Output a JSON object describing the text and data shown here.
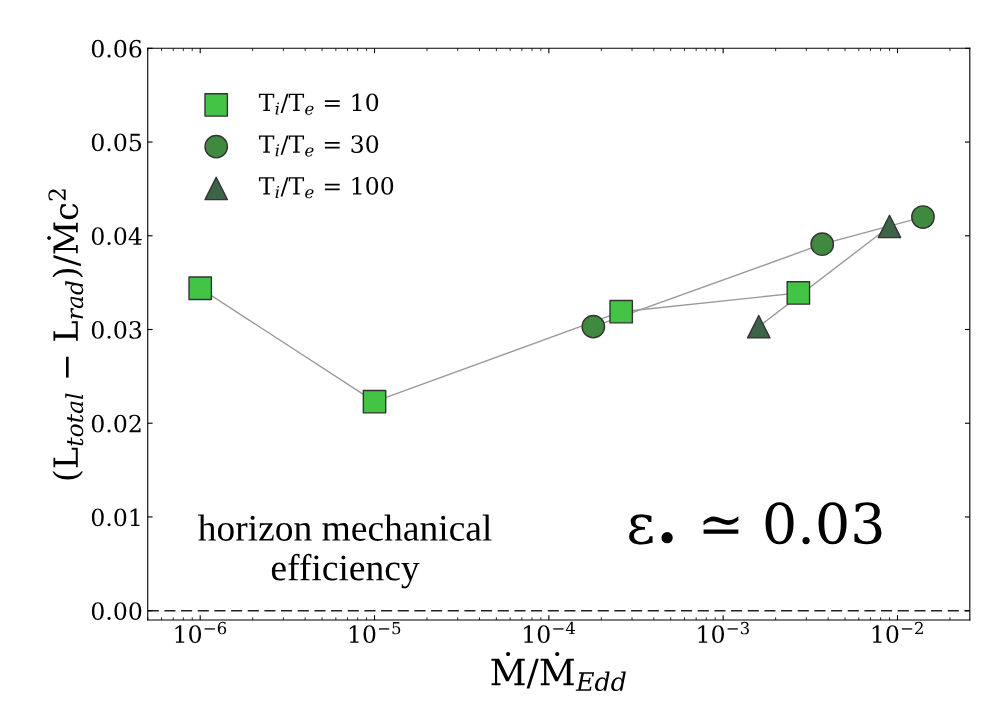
{
  "chart_data": {
    "type": "line",
    "xlabel": "Ṁ/Ṁ$_{Edd}$",
    "ylabel": "(L$_{total}$ − L$_{rad}$)/Ṁc$^{2}$",
    "log": "x",
    "xlim": [
      5e-07,
      0.026
    ],
    "xticks": [
      {
        "value": 1e-06,
        "label": "10$^{−6}$"
      },
      {
        "value": 1e-05,
        "label": "10$^{−5}$"
      },
      {
        "value": 0.0001,
        "label": "10$^{−4}$"
      },
      {
        "value": 0.001,
        "label": "10$^{−3}$"
      },
      {
        "value": 0.01,
        "label": "10$^{−2}$"
      }
    ],
    "ylim": [
      -0.001,
      0.06
    ],
    "yticks": [
      {
        "value": 0,
        "label": "0.00"
      },
      {
        "value": 0.01,
        "label": "0.01"
      },
      {
        "value": 0.02,
        "label": "0.02"
      },
      {
        "value": 0.03,
        "label": "0.03"
      },
      {
        "value": 0.04,
        "label": "0.04"
      },
      {
        "value": 0.05,
        "label": "0.05"
      },
      {
        "value": 0.06,
        "label": "0.06"
      }
    ],
    "grid": false,
    "legend": "top left",
    "line_style": "solid",
    "series": [
      {
        "name": "T$_{i}$/T$_{e}$ = 10",
        "color": "#999999",
        "colors": [
          "#44c444",
          "#44c444",
          "#44c444",
          "#44c444"
        ],
        "marker": "square",
        "x": [
          1e-06,
          1e-05,
          0.00026,
          0.0027
        ],
        "values": [
          0.0344,
          0.0223,
          0.0319,
          0.0339
        ]
      },
      {
        "name": "T$_{i}$/T$_{e}$ = 30",
        "color": "#999999",
        "colors": [
          "#3f8a3f",
          "#3f8a3f",
          "#3f8a3f"
        ],
        "marker": "circle",
        "x": [
          0.00018,
          0.0037,
          0.014
        ],
        "values": [
          0.0303,
          0.0391,
          0.042
        ]
      },
      {
        "name": "T$_{i}$/T$_{e}$ = 100",
        "color": "#999999",
        "colors": [
          "#3d6446",
          "#3d6446"
        ],
        "marker": "triangle",
        "x": [
          0.0016,
          0.009
        ],
        "values": [
          0.0303,
          0.041
        ]
      }
    ],
    "ref_lines": [
      {
        "axis": "y",
        "value": 0,
        "color": "#222222",
        "line_style": "dashed"
      }
    ],
    "annotations": [
      "horizon mechanical\nefficiency",
      "ε$_{•}$ ≃ 0.03"
    ]
  }
}
